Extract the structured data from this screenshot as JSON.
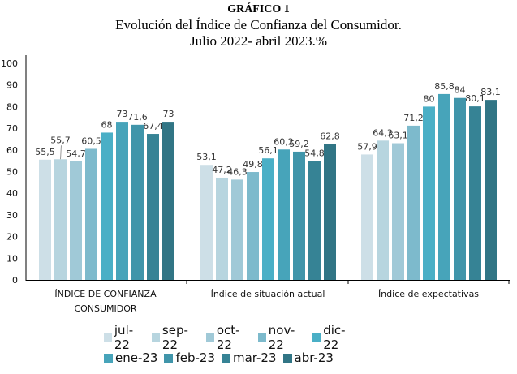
{
  "chart_data": {
    "type": "bar",
    "label": "GRÁFICO 1",
    "title": "Evolución  del Índice de Confianza del Consumidor.",
    "subtitle": "Julio 2022- abril 2023.%",
    "xlabel": "",
    "ylabel": "",
    "ylim": [
      0,
      100
    ],
    "yticks": [
      "0",
      "10",
      "20",
      "30",
      "40",
      "50",
      "60",
      "70",
      "80",
      "90",
      "100"
    ],
    "grid": false,
    "legend_position": "bottom",
    "categories": [
      "ÍNDICE DE CONFIANZA CONSUMIDOR",
      "Índice de situación actual",
      "Índice de expectativas"
    ],
    "category_lines": [
      [
        "ÍNDICE DE CONFIANZA",
        "CONSUMIDOR"
      ],
      [
        "Índice de situación actual"
      ],
      [
        "Índice de expectativas"
      ]
    ],
    "series": [
      {
        "name": "jul-22",
        "color": "#cddfe7",
        "values": [
          55.5,
          53.1,
          57.9
        ],
        "labels": [
          "55,5",
          "53,1",
          "57,9"
        ]
      },
      {
        "name": "sep-22",
        "color": "#b7d5df",
        "values": [
          55.7,
          47.2,
          64.3
        ],
        "labels": [
          "55,7",
          "47,2",
          "64,3"
        ]
      },
      {
        "name": "oct-22",
        "color": "#a0c9d7",
        "values": [
          54.7,
          46.3,
          63.1
        ],
        "labels": [
          "54,7",
          "46,3",
          "63,1"
        ]
      },
      {
        "name": "nov-22",
        "color": "#7dbacc",
        "values": [
          60.5,
          49.8,
          71.2
        ],
        "labels": [
          "60,5",
          "49,8",
          "71,2"
        ]
      },
      {
        "name": "dic-22",
        "color": "#4aafc6",
        "values": [
          68,
          56.1,
          80
        ],
        "labels": [
          "68",
          "56,1",
          "80"
        ]
      },
      {
        "name": "ene-23",
        "color": "#47a4ba",
        "values": [
          73,
          60.2,
          85.8
        ],
        "labels": [
          "73",
          "60,2",
          "85,8"
        ]
      },
      {
        "name": "feb-23",
        "color": "#4095aa",
        "values": [
          71.6,
          59.2,
          84
        ],
        "labels": [
          "71,6",
          "59,2",
          "84"
        ]
      },
      {
        "name": "mar-23",
        "color": "#368395",
        "values": [
          67.4,
          54.8,
          80.1
        ],
        "labels": [
          "67,4",
          "54,8",
          "80,1"
        ]
      },
      {
        "name": "abr-23",
        "color": "#317585",
        "values": [
          73,
          62.8,
          83.1
        ],
        "labels": [
          "73",
          "62,8",
          "83,1"
        ]
      }
    ]
  }
}
